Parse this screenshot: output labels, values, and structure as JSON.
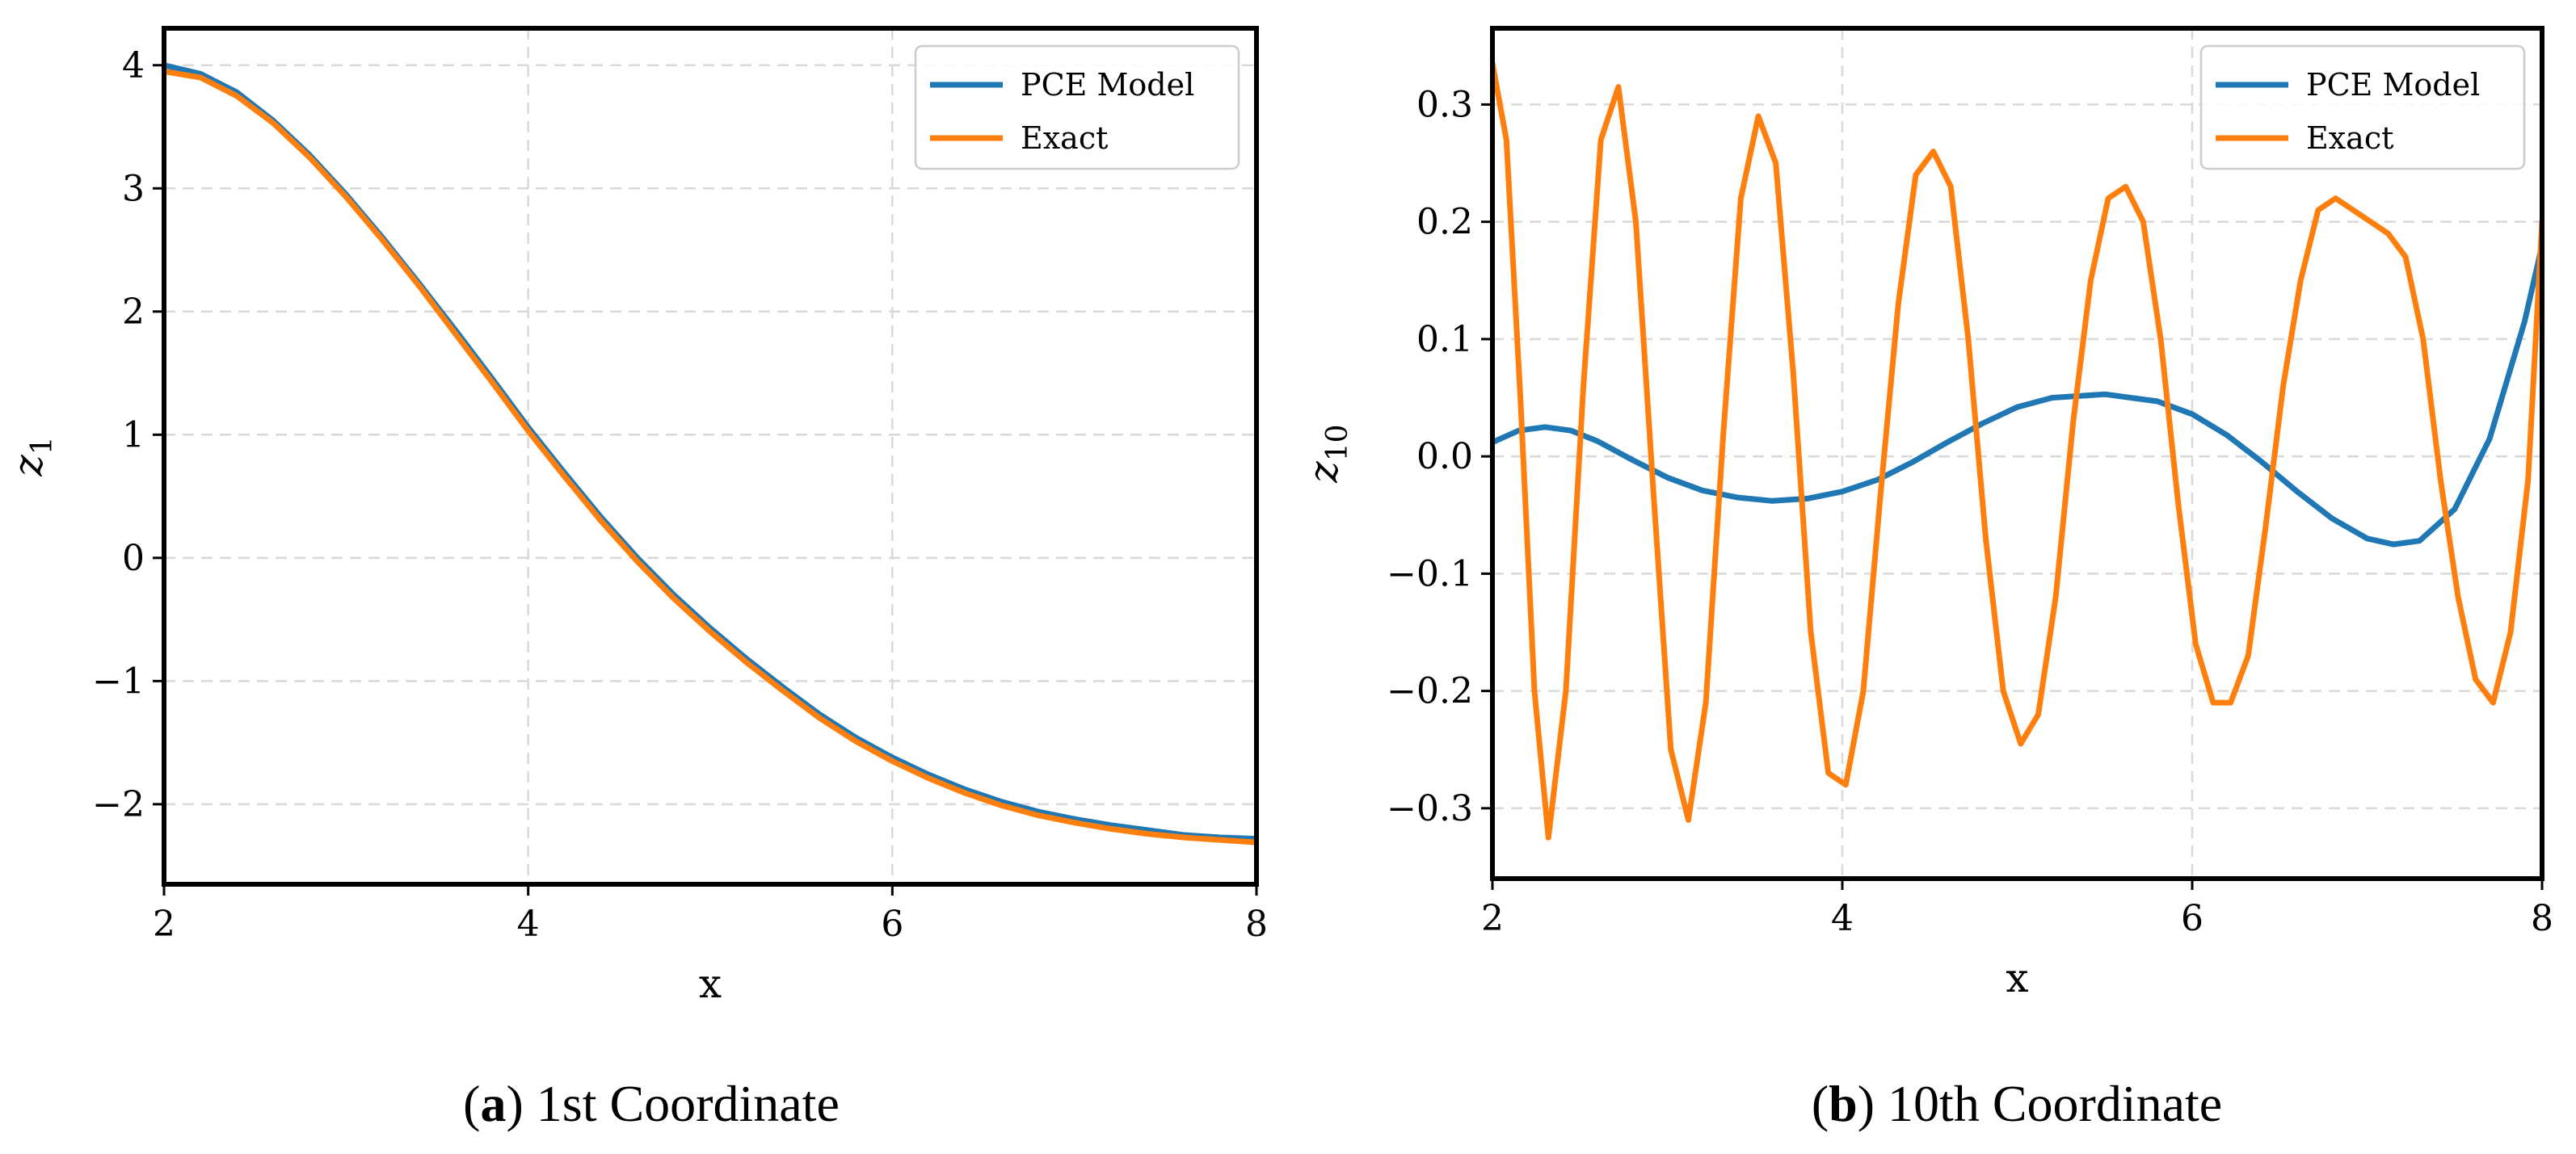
{
  "chart_data": [
    {
      "type": "line",
      "caption_letter": "a",
      "caption_text": "1st Coordinate",
      "xlabel": "x",
      "ylabel_base": "z",
      "ylabel_sub": "1",
      "xlim": [
        2,
        8
      ],
      "ylim": [
        -2.65,
        4.3
      ],
      "xticks": [
        2,
        4,
        6,
        8
      ],
      "xtick_labels": [
        "2",
        "4",
        "6",
        "8"
      ],
      "yticks": [
        -2,
        -1,
        0,
        1,
        2,
        3,
        4
      ],
      "ytick_labels": [
        "−2",
        "−1",
        "0",
        "1",
        "2",
        "3",
        "4"
      ],
      "grid": true,
      "legend_position": "top-right",
      "series": [
        {
          "name": "PCE Model",
          "color": "#1f77b4",
          "x": [
            2.0,
            2.2,
            2.4,
            2.6,
            2.8,
            3.0,
            3.2,
            3.4,
            3.6,
            3.8,
            4.0,
            4.2,
            4.4,
            4.6,
            4.8,
            5.0,
            5.2,
            5.4,
            5.6,
            5.8,
            6.0,
            6.2,
            6.4,
            6.6,
            6.8,
            7.0,
            7.2,
            7.4,
            7.6,
            7.8,
            8.0
          ],
          "y": [
            4.0,
            3.93,
            3.78,
            3.55,
            3.27,
            2.95,
            2.6,
            2.23,
            1.85,
            1.46,
            1.06,
            0.69,
            0.33,
            0.0,
            -0.3,
            -0.57,
            -0.82,
            -1.05,
            -1.27,
            -1.46,
            -1.62,
            -1.76,
            -1.88,
            -1.98,
            -2.06,
            -2.12,
            -2.17,
            -2.21,
            -2.25,
            -2.27,
            -2.28
          ]
        },
        {
          "name": "Exact",
          "color": "#ff7f0e",
          "x": [
            2.0,
            2.2,
            2.4,
            2.6,
            2.8,
            3.0,
            3.2,
            3.4,
            3.6,
            3.8,
            4.0,
            4.2,
            4.4,
            4.6,
            4.8,
            5.0,
            5.2,
            5.4,
            5.6,
            5.8,
            6.0,
            6.2,
            6.4,
            6.6,
            6.8,
            7.0,
            7.2,
            7.4,
            7.6,
            7.8,
            8.0
          ],
          "y": [
            3.95,
            3.9,
            3.75,
            3.53,
            3.25,
            2.93,
            2.58,
            2.21,
            1.82,
            1.43,
            1.03,
            0.66,
            0.3,
            -0.03,
            -0.33,
            -0.6,
            -0.85,
            -1.08,
            -1.3,
            -1.49,
            -1.65,
            -1.79,
            -1.91,
            -2.01,
            -2.09,
            -2.15,
            -2.2,
            -2.24,
            -2.27,
            -2.29,
            -2.31
          ]
        }
      ]
    },
    {
      "type": "line",
      "caption_letter": "b",
      "caption_text": "10th Coordinate",
      "xlabel": "x",
      "ylabel_base": "z",
      "ylabel_sub": "10",
      "xlim": [
        2,
        8
      ],
      "ylim": [
        -0.36,
        0.365
      ],
      "xticks": [
        2,
        4,
        6,
        8
      ],
      "xtick_labels": [
        "2",
        "4",
        "6",
        "8"
      ],
      "yticks": [
        -0.3,
        -0.2,
        -0.1,
        0.0,
        0.1,
        0.2,
        0.3
      ],
      "ytick_labels": [
        "−0.3",
        "−0.2",
        "−0.1",
        "0.0",
        "0.1",
        "0.2",
        "0.3"
      ],
      "grid": true,
      "legend_position": "top-right",
      "series": [
        {
          "name": "PCE Model",
          "color": "#1f77b4",
          "x": [
            2.0,
            2.15,
            2.3,
            2.45,
            2.6,
            2.8,
            3.0,
            3.2,
            3.4,
            3.6,
            3.8,
            4.0,
            4.2,
            4.4,
            4.6,
            4.8,
            5.0,
            5.2,
            5.5,
            5.8,
            6.0,
            6.2,
            6.4,
            6.6,
            6.8,
            7.0,
            7.15,
            7.3,
            7.5,
            7.7,
            7.9,
            8.0
          ],
          "y": [
            0.012,
            0.022,
            0.025,
            0.022,
            0.013,
            -0.003,
            -0.018,
            -0.029,
            -0.035,
            -0.038,
            -0.036,
            -0.03,
            -0.02,
            -0.005,
            0.012,
            0.028,
            0.042,
            0.05,
            0.053,
            0.047,
            0.036,
            0.018,
            -0.005,
            -0.03,
            -0.053,
            -0.07,
            -0.075,
            -0.072,
            -0.045,
            0.015,
            0.115,
            0.18
          ]
        },
        {
          "name": "Exact",
          "color": "#ff7f0e",
          "x": [
            2.0,
            2.08,
            2.16,
            2.24,
            2.32,
            2.42,
            2.52,
            2.62,
            2.72,
            2.82,
            2.92,
            3.02,
            3.12,
            3.22,
            3.32,
            3.42,
            3.52,
            3.62,
            3.72,
            3.82,
            3.92,
            4.02,
            4.12,
            4.22,
            4.32,
            4.42,
            4.52,
            4.62,
            4.72,
            4.82,
            4.92,
            5.02,
            5.12,
            5.22,
            5.32,
            5.42,
            5.52,
            5.62,
            5.72,
            5.82,
            5.92,
            6.02,
            6.12,
            6.22,
            6.32,
            6.42,
            6.52,
            6.62,
            6.72,
            6.82,
            6.92,
            7.02,
            7.12,
            7.22,
            7.32,
            7.42,
            7.52,
            7.62,
            7.72,
            7.82,
            7.92,
            8.0
          ],
          "y": [
            0.335,
            0.27,
            0.05,
            -0.2,
            -0.325,
            -0.2,
            0.06,
            0.27,
            0.315,
            0.2,
            -0.03,
            -0.25,
            -0.31,
            -0.21,
            0.02,
            0.22,
            0.29,
            0.25,
            0.07,
            -0.15,
            -0.27,
            -0.28,
            -0.2,
            -0.03,
            0.13,
            0.24,
            0.26,
            0.23,
            0.1,
            -0.07,
            -0.2,
            -0.245,
            -0.22,
            -0.12,
            0.03,
            0.15,
            0.22,
            0.23,
            0.2,
            0.1,
            -0.04,
            -0.16,
            -0.21,
            -0.21,
            -0.17,
            -0.06,
            0.06,
            0.15,
            0.21,
            0.22,
            0.21,
            0.2,
            0.19,
            0.17,
            0.1,
            -0.02,
            -0.12,
            -0.19,
            -0.21,
            -0.15,
            -0.02,
            0.2
          ]
        }
      ]
    }
  ]
}
